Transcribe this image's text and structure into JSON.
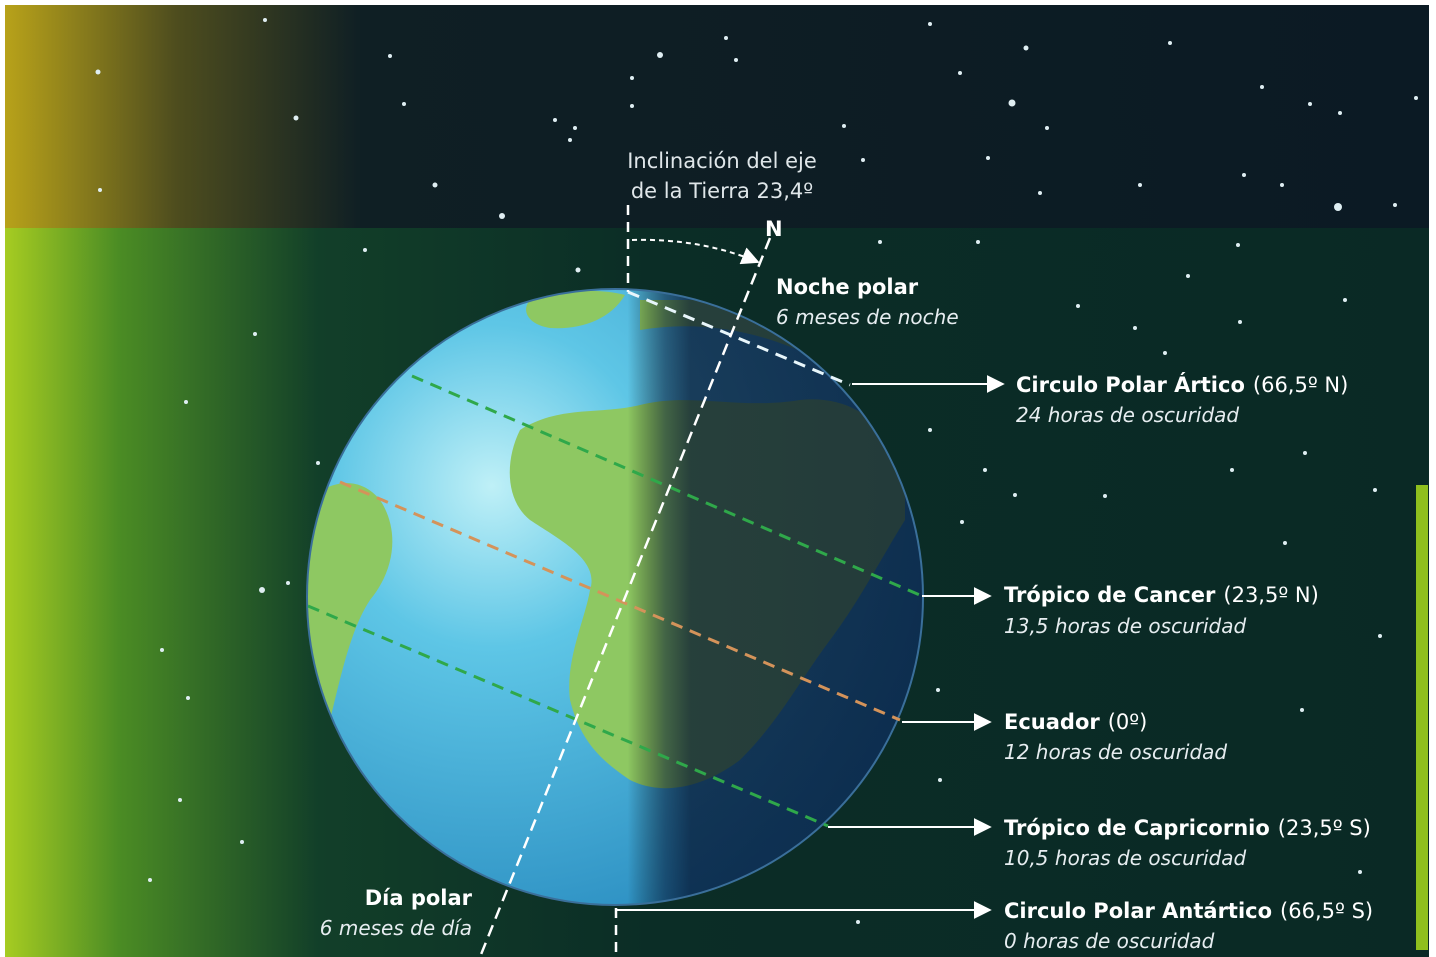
{
  "axis_note": {
    "line1": "Inclinación del eje",
    "line2": "de la Tierra 23,4º"
  },
  "north_label": "N",
  "noche_polar": {
    "title": "Noche polar",
    "subtitle": "6 meses de noche"
  },
  "dia_polar": {
    "title": "Día polar",
    "subtitle": "6 meses de día"
  },
  "parallels": [
    {
      "name": "Circulo Polar Ártico",
      "lat": "(66,5º N)",
      "dark": "24 horas de oscuridad"
    },
    {
      "name": "Trópico de Cancer",
      "lat": "(23,5º N)",
      "dark": "13,5 horas de oscuridad"
    },
    {
      "name": "Ecuador",
      "lat": "(0º)",
      "dark": "12 horas de oscuridad"
    },
    {
      "name": "Trópico de Capricornio",
      "lat": "(23,5º S)",
      "dark": "10,5 horas de oscuridad"
    },
    {
      "name": "Circulo Polar Antártico",
      "lat": "(66,5º S)",
      "dark": "0 horas de oscuridad"
    }
  ],
  "colors": {
    "space": "#0b1a24",
    "space_green": "#0a2e26",
    "ocean_day": "#5ec6e6",
    "ocean_night": "#0b2a5a",
    "land_day": "#8ec862",
    "land_night": "#1f4626",
    "tropic_line": "#2fa84a",
    "equator_line": "#d4935a",
    "axis_line": "#ffffff"
  }
}
